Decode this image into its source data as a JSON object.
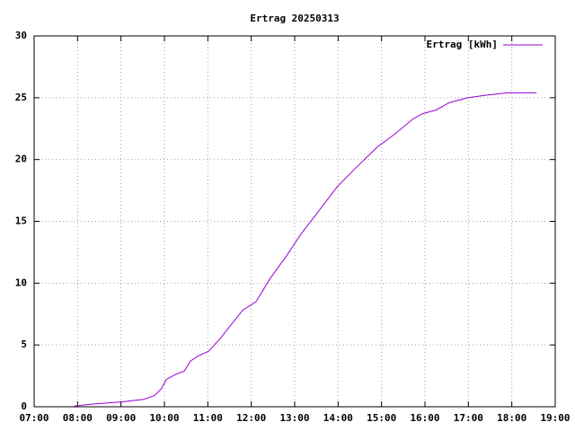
{
  "chart_data": {
    "type": "line",
    "title": "Ertrag 20250313",
    "series": [
      {
        "name": "Ertrag [kWh]",
        "color": "#9400d3",
        "x": [
          7.92,
          8.29,
          9.03,
          9.52,
          9.77,
          9.94,
          10.04,
          10.25,
          10.46,
          10.6,
          10.77,
          11.02,
          11.28,
          11.55,
          11.8,
          12.11,
          12.42,
          12.83,
          13.15,
          13.46,
          13.98,
          14.4,
          14.9,
          15.32,
          15.73,
          15.94,
          16.25,
          16.56,
          16.98,
          17.39,
          17.9,
          18.57
        ],
        "values": [
          0.05,
          0.2,
          0.4,
          0.6,
          0.9,
          1.5,
          2.2,
          2.6,
          2.9,
          3.7,
          4.1,
          4.5,
          5.5,
          6.7,
          7.8,
          8.5,
          10.3,
          12.3,
          14.0,
          15.4,
          17.8,
          19.3,
          21.0,
          22.1,
          23.3,
          23.7,
          24.0,
          24.6,
          25.0,
          25.2,
          25.4,
          25.4
        ]
      }
    ],
    "xlim": [
      7,
      19
    ],
    "xticks": [
      {
        "value": 7,
        "label": "07:00"
      },
      {
        "value": 8,
        "label": "08:00"
      },
      {
        "value": 9,
        "label": "09:00"
      },
      {
        "value": 10,
        "label": "10:00"
      },
      {
        "value": 11,
        "label": "11:00"
      },
      {
        "value": 12,
        "label": "12:00"
      },
      {
        "value": 13,
        "label": "13:00"
      },
      {
        "value": 14,
        "label": "14:00"
      },
      {
        "value": 15,
        "label": "15:00"
      },
      {
        "value": 16,
        "label": "16:00"
      },
      {
        "value": 17,
        "label": "17:00"
      },
      {
        "value": 18,
        "label": "18:00"
      },
      {
        "value": 19,
        "label": "19:00"
      }
    ],
    "ylim": [
      0,
      30
    ],
    "yticks": [
      0,
      5,
      10,
      15,
      20,
      25,
      30
    ],
    "grid": true,
    "legend": "top-right"
  }
}
